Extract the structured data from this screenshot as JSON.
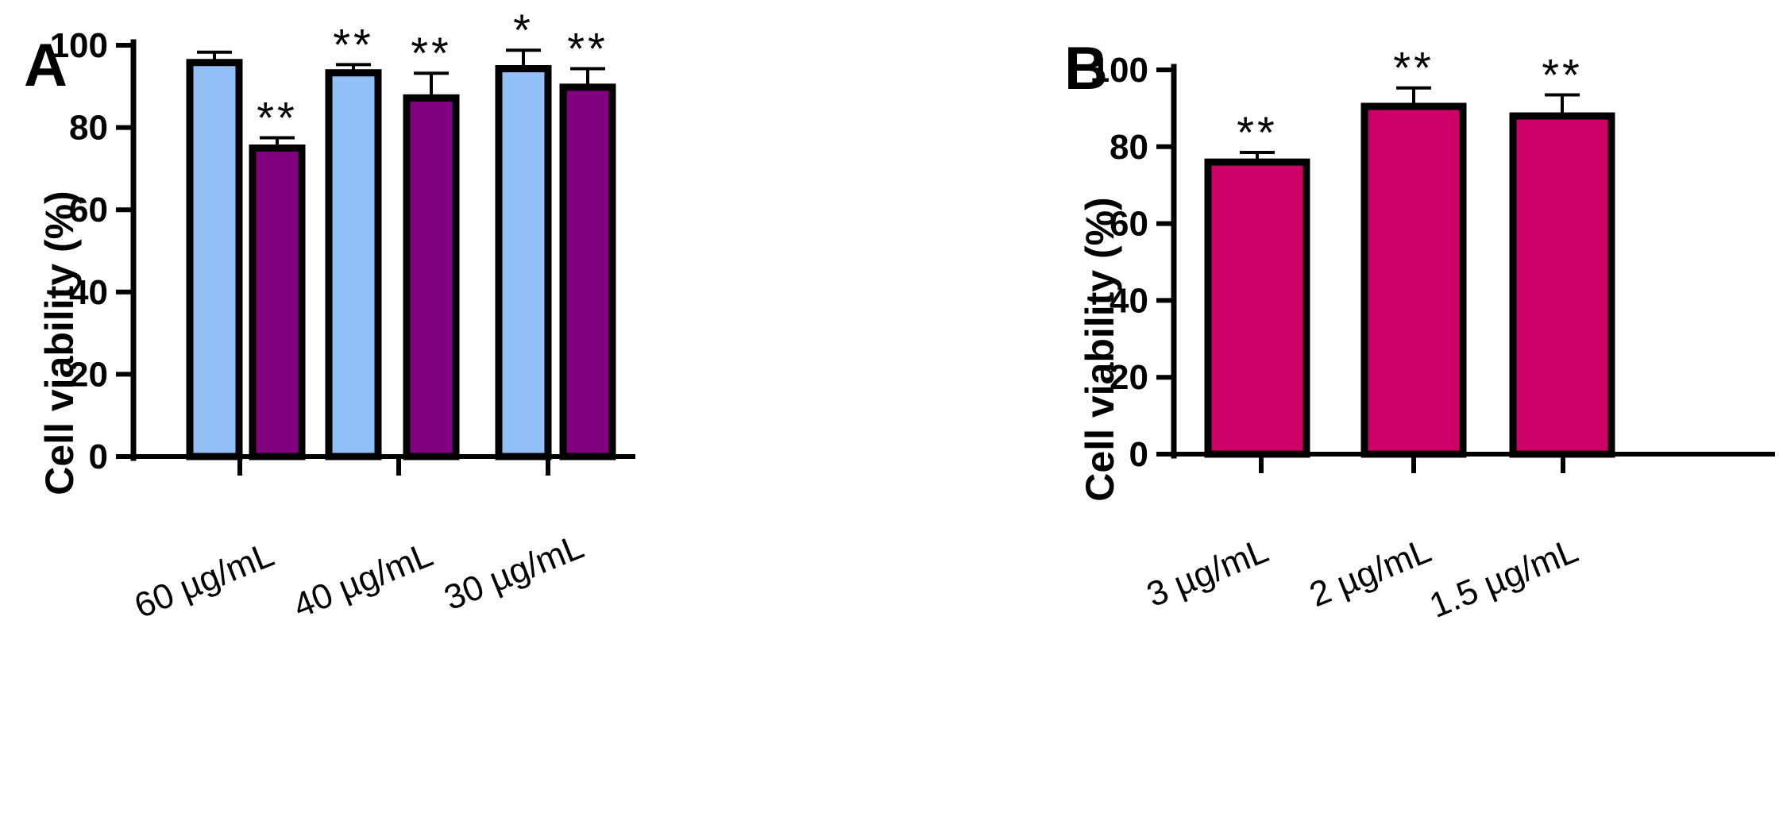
{
  "chart_data": [
    {
      "panel": "A",
      "type": "bar",
      "ylabel": "Cell viability (%)",
      "xlabel": "",
      "ylim": [
        0,
        100
      ],
      "yticks": [
        "0",
        "20",
        "40",
        "60",
        "80",
        "100"
      ],
      "categories": [
        "60 µg/mL",
        "40 µg/mL",
        "30 µg/mL"
      ],
      "series": [
        {
          "color": "#92c0f6",
          "values": [
            95.8,
            93.3,
            94.3
          ],
          "errors": [
            2.5,
            2.0,
            4.5
          ]
        },
        {
          "color": "#800080",
          "values": [
            75.0,
            87.2,
            89.8
          ],
          "errors": [
            2.5,
            6.0,
            4.5
          ]
        }
      ],
      "annotations": [
        [
          "",
          "**"
        ],
        [
          "**",
          "**"
        ],
        [
          "*",
          "**"
        ]
      ]
    },
    {
      "panel": "B",
      "type": "bar",
      "ylabel": "Cell viability (%)",
      "xlabel": "",
      "ylim": [
        0,
        100
      ],
      "yticks": [
        "0",
        "20",
        "40",
        "60",
        "80",
        "100"
      ],
      "categories": [
        "3 µg/mL",
        "2 µg/mL",
        "1.5 µg/mL"
      ],
      "series": [
        {
          "color": "#cc0066",
          "values": [
            76.0,
            90.5,
            88.0
          ],
          "errors": [
            2.5,
            4.8,
            5.5
          ]
        }
      ],
      "annotations": [
        "**",
        "**",
        "**"
      ]
    }
  ]
}
